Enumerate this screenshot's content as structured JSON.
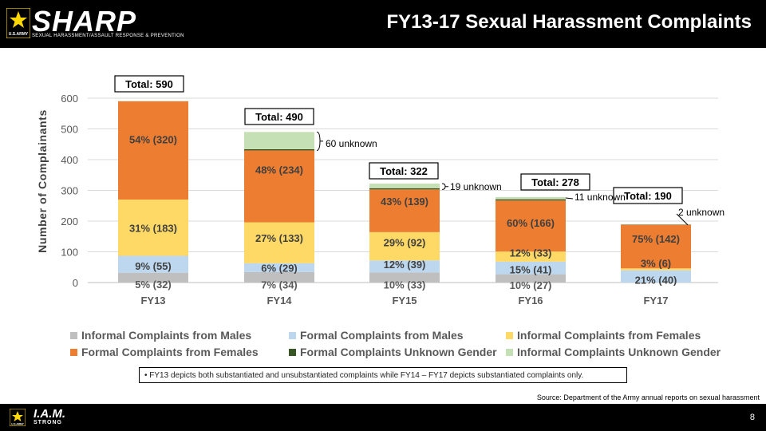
{
  "header": {
    "brand": "SHARP",
    "brand_sub": "SEXUAL HARASSMENT/ASSAULT RESPONSE & PREVENTION",
    "army_tag": "U.S.ARMY",
    "title": "FY13-17 Sexual Harassment Complaints"
  },
  "chart_data": {
    "type": "bar",
    "stacked": true,
    "title": "FY13-17 Sexual Harassment Complaints",
    "xlabel": "",
    "ylabel": "Number of Complainants",
    "ylim": [
      0,
      600
    ],
    "yticks": [
      "0",
      "100",
      "200",
      "300",
      "400",
      "500",
      "600"
    ],
    "grid": true,
    "legend_position": "bottom",
    "categories": [
      "FY13",
      "FY14",
      "FY15",
      "FY16",
      "FY17"
    ],
    "series": [
      {
        "name": "Informal Complaints from Males",
        "color": "#bfbfbf",
        "values": [
          32,
          34,
          33,
          27,
          0
        ],
        "labels": [
          "5% (32)",
          "7% (34)",
          "10% (33)",
          "10% (27)",
          ""
        ]
      },
      {
        "name": "Formal Complaints from Males",
        "color": "#bdd7ee",
        "values": [
          55,
          29,
          39,
          41,
          40
        ],
        "labels": [
          "9% (55)",
          "6% (29)",
          "12% (39)",
          "15% (41)",
          "21% (40)"
        ]
      },
      {
        "name": "Informal Complaints from Females",
        "color": "#ffd966",
        "values": [
          183,
          133,
          92,
          33,
          6
        ],
        "labels": [
          "31% (183)",
          "27% (133)",
          "29% (92)",
          "12% (33)",
          "3% (6)"
        ]
      },
      {
        "name": "Formal Complaints from Females",
        "color": "#ed7d31",
        "values": [
          320,
          234,
          139,
          166,
          142
        ],
        "labels": [
          "54% (320)",
          "48% (234)",
          "43% (139)",
          "60% (166)",
          "75% (142)"
        ]
      },
      {
        "name": "Formal Complaints Unknown Gender",
        "color": "#375623",
        "values": [
          0,
          4,
          4,
          4,
          1
        ],
        "labels": [
          "",
          "",
          "",
          "",
          ""
        ]
      },
      {
        "name": "Informal Complaints Unknown Gender",
        "color": "#c5e0b4",
        "values": [
          0,
          56,
          15,
          7,
          1
        ],
        "labels": [
          "",
          "",
          "",
          "",
          ""
        ]
      }
    ],
    "totals": [
      "Total: 590",
      "Total: 490",
      "Total: 322",
      "Total: 278",
      "Total: 190"
    ],
    "unknown_notes": [
      "",
      "60 unknown",
      "19 unknown",
      "11 unknown",
      "2 unknown"
    ]
  },
  "note": "• FY13 depicts both substantiated and unsubstantiated complaints while FY14 – FY17 depicts substantiated complaints only.",
  "source": "Source: Department of the Army annual reports on sexual harassment",
  "footer": {
    "brand": "I.A.M.",
    "brand_sub": "STRONG",
    "army_tag": "U.S.ARMY",
    "page": "8"
  }
}
